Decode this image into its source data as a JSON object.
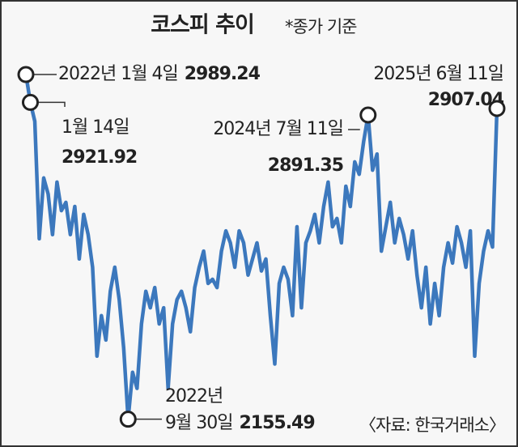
{
  "chart_data": {
    "type": "line",
    "title": "코스피 추이",
    "subtitle": "*종가 기준",
    "source": "〈자료: 한국거래소〉",
    "color": "#3c78bd",
    "ylim": [
      2100,
      3050
    ],
    "series": [
      {
        "values": [
          2989.24,
          2921.92,
          2876,
          2592,
          2739,
          2700,
          2602,
          2729,
          2660,
          2680,
          2602,
          2670,
          2543,
          2651,
          2602,
          2523,
          2308,
          2406,
          2347,
          2465,
          2523,
          2445,
          2328,
          2155.49,
          2269,
          2230,
          2386,
          2465,
          2425,
          2474,
          2386,
          2425,
          2230,
          2386,
          2445,
          2465,
          2425,
          2367,
          2474,
          2523,
          2562,
          2484,
          2494,
          2474,
          2562,
          2611,
          2582,
          2523,
          2611,
          2582,
          2504,
          2543,
          2582,
          2514,
          2543,
          2406,
          2289,
          2484,
          2523,
          2494,
          2406,
          2621,
          2425,
          2582,
          2611,
          2651,
          2582,
          2670,
          2729,
          2621,
          2641,
          2582,
          2719,
          2670,
          2778,
          2748,
          2827,
          2891.35,
          2758,
          2797,
          2562,
          2621,
          2680,
          2582,
          2641,
          2602,
          2543,
          2611,
          2504,
          2425,
          2523,
          2386,
          2484,
          2406,
          2523,
          2582,
          2533,
          2621,
          2582,
          2523,
          2611,
          2308,
          2484,
          2562,
          2611,
          2572,
          2907.04
        ]
      }
    ],
    "annotations": [
      {
        "point": "chart_data.series.0.values.0",
        "lines": [
          "2022년 1월 4일"
        ],
        "value_label": "2989.24"
      },
      {
        "point": "chart_data.series.0.values.1",
        "lines": [
          "1월 14일"
        ],
        "value_label": "2921.92"
      },
      {
        "point": "chart_data.series.0.values.23",
        "lines": [
          "2022년",
          "9월 30일"
        ],
        "value_label": "2155.49"
      },
      {
        "point": "chart_data.series.0.values.77",
        "lines": [
          "2024년 7월 11일"
        ],
        "value_label": "2891.35"
      },
      {
        "point": "chart_data.series.0.values.106",
        "lines": [
          "2025년 6월 11일"
        ],
        "value_label": "2907.04"
      }
    ]
  }
}
